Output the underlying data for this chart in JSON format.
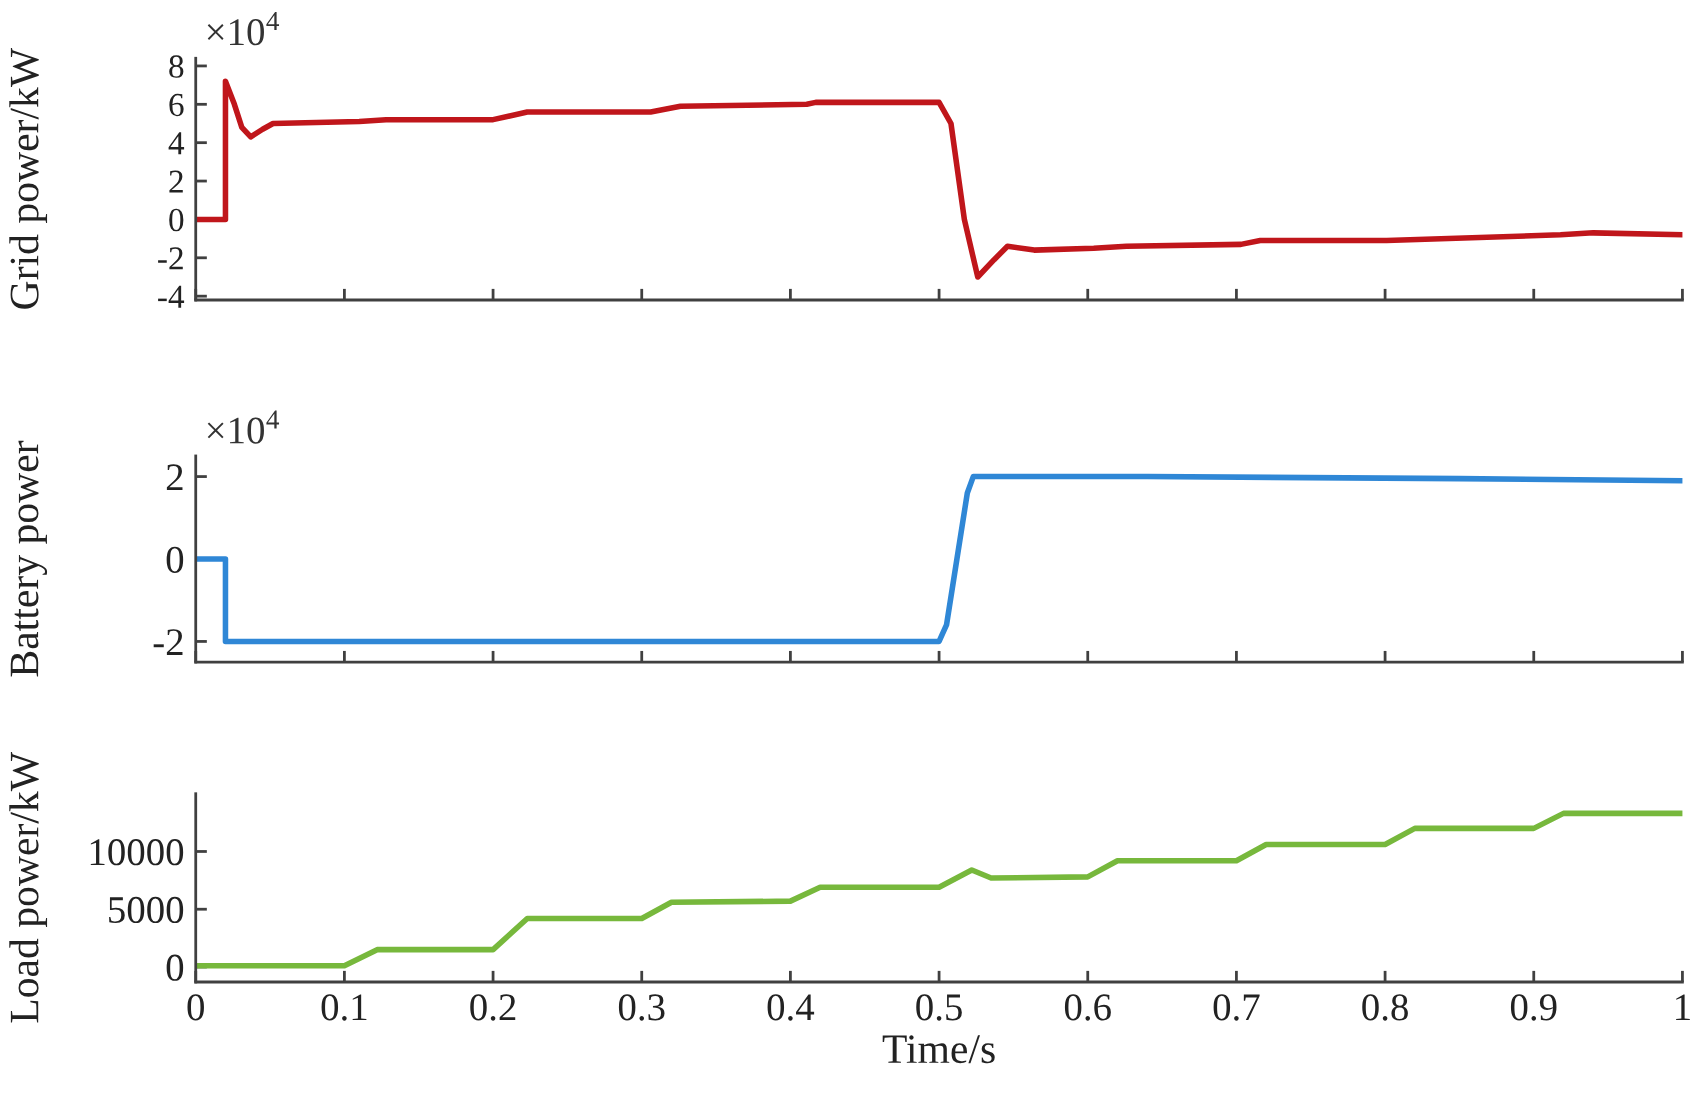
{
  "chart_data": [
    {
      "type": "line",
      "ylabel": "Grid power/kW",
      "annotations": [
        "×10$^{4}$"
      ],
      "tick_labels": "y",
      "x": [
        0,
        0.02,
        0.02,
        0.026,
        0.031,
        0.037,
        0.045,
        0.052,
        0.11,
        0.128,
        0.2,
        0.223,
        0.306,
        0.326,
        0.411,
        0.417,
        0.5,
        0.508,
        0.517,
        0.526,
        0.537,
        0.546,
        0.564,
        0.604,
        0.626,
        0.703,
        0.716,
        0.801,
        0.918,
        0.94,
        1
      ],
      "series": [
        {
          "color": "#c0161b",
          "values": [
            0,
            0,
            7.2,
            6.0,
            4.8,
            4.3,
            4.7,
            5.0,
            5.1,
            5.2,
            5.2,
            5.6,
            5.6,
            5.9,
            6.0,
            6.1,
            6.1,
            5.0,
            0,
            -3.0,
            -2.1,
            -1.4,
            -1.6,
            -1.5,
            -1.4,
            -1.3,
            -1.1,
            -1.1,
            -0.8,
            -0.7,
            -0.8
          ]
        }
      ],
      "xlim": [
        0,
        1
      ],
      "xticks": [
        0,
        0.1,
        0.2,
        0.3,
        0.4,
        0.5,
        0.6,
        0.7,
        0.8,
        0.9,
        1
      ],
      "ylim": [
        -4.2,
        8.4
      ],
      "yticks": [
        -4,
        -2,
        0,
        2,
        4,
        6,
        8
      ]
    },
    {
      "type": "line",
      "ylabel": "Battery power",
      "annotations": [
        "×10$^{4}$"
      ],
      "tick_labels": "y",
      "x": [
        0,
        0.02,
        0.02,
        0.5,
        0.505,
        0.512,
        0.519,
        0.523,
        0.64,
        0.85,
        1
      ],
      "series": [
        {
          "color": "#2f87d6",
          "values": [
            0,
            0,
            -2.0,
            -2.0,
            -1.6,
            0,
            1.6,
            2.0,
            2.0,
            1.95,
            1.9
          ]
        }
      ],
      "xlim": [
        0,
        1
      ],
      "xticks": [
        0,
        0.1,
        0.2,
        0.3,
        0.4,
        0.5,
        0.6,
        0.7,
        0.8,
        0.9,
        1
      ],
      "ylim": [
        -2.5,
        2.5
      ],
      "yticks": [
        -2,
        0,
        2
      ]
    },
    {
      "type": "line",
      "ylabel": "Load power/kW",
      "xlabel": "Time/s",
      "x": [
        0,
        0.1,
        0.122,
        0.2,
        0.223,
        0.3,
        0.32,
        0.4,
        0.42,
        0.5,
        0.522,
        0.535,
        0.6,
        0.62,
        0.7,
        0.72,
        0.8,
        0.82,
        0.9,
        0.92,
        1
      ],
      "series": [
        {
          "color": "#77b83c",
          "values": [
            100,
            100,
            1500,
            1500,
            4200,
            4200,
            5600,
            5700,
            6900,
            6900,
            8400,
            7700,
            7800,
            9200,
            9200,
            10600,
            10600,
            12000,
            12000,
            13300,
            13300
          ]
        }
      ],
      "xlim": [
        0,
        1
      ],
      "xticks": [
        0,
        0.1,
        0.2,
        0.3,
        0.4,
        0.5,
        0.6,
        0.7,
        0.8,
        0.9,
        1
      ],
      "ylim": [
        -1300,
        15000
      ],
      "yticks": [
        0,
        5000,
        10000
      ]
    }
  ]
}
